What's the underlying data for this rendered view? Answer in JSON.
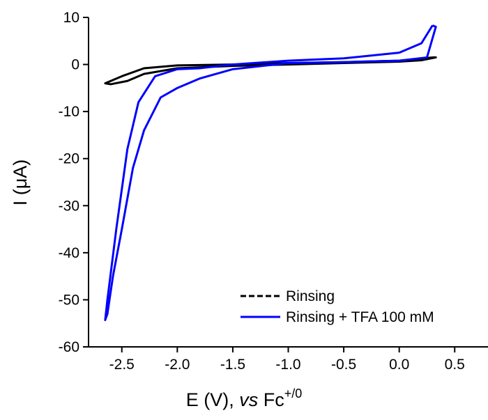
{
  "chart_data": {
    "type": "line",
    "xlabel": [
      "E (V), ",
      "vs",
      " Fc",
      "+/0"
    ],
    "ylabel": "I (μA)",
    "xlim": [
      -2.8,
      0.8
    ],
    "ylim": [
      -60,
      10
    ],
    "xticks": [
      -2.5,
      -2.0,
      -1.5,
      -1.0,
      -0.5,
      0.0,
      0.5
    ],
    "yticks": [
      10,
      0,
      -10,
      -20,
      -30,
      -40,
      -50,
      -60
    ],
    "legend": "lower right",
    "series": [
      {
        "name": "Rinsing",
        "color": "#000000",
        "legend_linestyle": "dashed",
        "x": [
          0.3,
          0.0,
          -0.5,
          -1.0,
          -1.5,
          -2.0,
          -2.3,
          -2.5,
          -2.65,
          -2.6,
          -2.45,
          -2.3,
          -2.0,
          -1.5,
          -1.0,
          -0.5,
          0.0,
          0.2,
          0.33,
          0.3
        ],
        "values": [
          1.5,
          0.8,
          0.5,
          0.3,
          0.0,
          -0.2,
          -0.8,
          -2.5,
          -4.0,
          -4.2,
          -3.5,
          -2.0,
          -0.8,
          -0.3,
          0.0,
          0.3,
          0.6,
          0.9,
          1.5,
          1.5
        ]
      },
      {
        "name": "Rinsing + TFA 100 mM",
        "color": "#0000ff",
        "legend_linestyle": "solid",
        "x": [
          0.3,
          0.2,
          0.0,
          -0.5,
          -1.0,
          -1.5,
          -1.8,
          -2.0,
          -2.2,
          -2.35,
          -2.45,
          -2.55,
          -2.63,
          -2.65,
          -2.63,
          -2.58,
          -2.5,
          -2.4,
          -2.3,
          -2.15,
          -2.0,
          -1.8,
          -1.5,
          -1.0,
          -0.5,
          0.0,
          0.25,
          0.33,
          0.3
        ],
        "values": [
          8.3,
          4.5,
          2.5,
          1.3,
          0.8,
          0.0,
          -0.8,
          -1.0,
          -2.5,
          -8.0,
          -18.0,
          -35.0,
          -50.0,
          -54.3,
          -53.0,
          -45.0,
          -35.0,
          -22.0,
          -14.0,
          -7.0,
          -5.0,
          -3.0,
          -1.0,
          0.3,
          0.5,
          0.8,
          1.5,
          8.0,
          8.3
        ]
      }
    ]
  }
}
